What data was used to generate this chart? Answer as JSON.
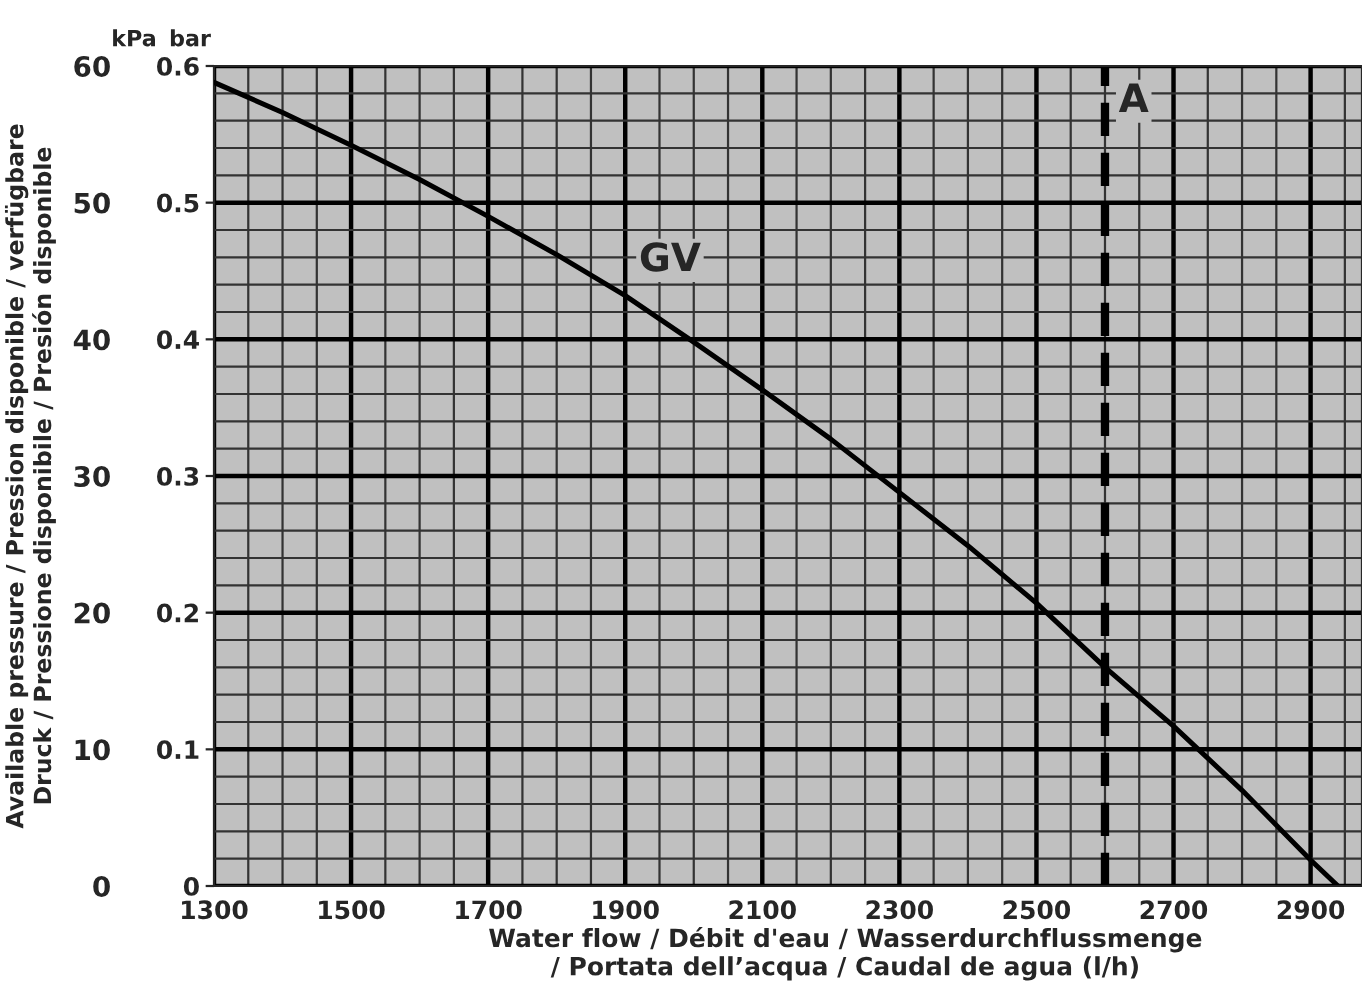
{
  "chart_data": {
    "type": "line",
    "xlabel": "Water flow / Débit d'eau / Wasserdurchflussmenge\n/ Portata dell’acqua / Caudal de agua (l/h)",
    "y2label": "Available pressure / Pression disponible / verfügbare\nDruck / Pressione disponibile / Presión disponible",
    "x": [
      1300,
      1400,
      1500,
      1600,
      1700,
      1800,
      1900,
      2000,
      2100,
      2200,
      2300,
      2400,
      2500,
      2600,
      2700,
      2800,
      2900,
      2940
    ],
    "series": [
      {
        "name": "GV",
        "color": "#000000",
        "values": [
          0.588,
          0.566,
          0.542,
          0.517,
          0.49,
          0.462,
          0.432,
          0.398,
          0.363,
          0.327,
          0.288,
          0.249,
          0.207,
          0.16,
          0.117,
          0.07,
          0.019,
          0
        ]
      }
    ],
    "xlim": [
      1300,
      2975
    ],
    "xticks": [
      1300,
      1500,
      1700,
      1900,
      2100,
      2300,
      2500,
      2700,
      2900
    ],
    "ylim": [
      0,
      0.6
    ],
    "yticks": [
      0,
      0.1,
      0.2,
      0.3,
      0.4,
      0.5,
      0.6
    ],
    "y2lim": [
      0,
      60
    ],
    "y2ticks": [
      0,
      10,
      20,
      30,
      40,
      50,
      60
    ],
    "ref_lines": [
      {
        "axis": "x",
        "value": 2600,
        "label": "A",
        "color": "#000000",
        "line_style": "dashed"
      }
    ],
    "annotations": [
      "kPa",
      "bar"
    ],
    "grid": true,
    "marker": "none",
    "line_style": "solid"
  }
}
